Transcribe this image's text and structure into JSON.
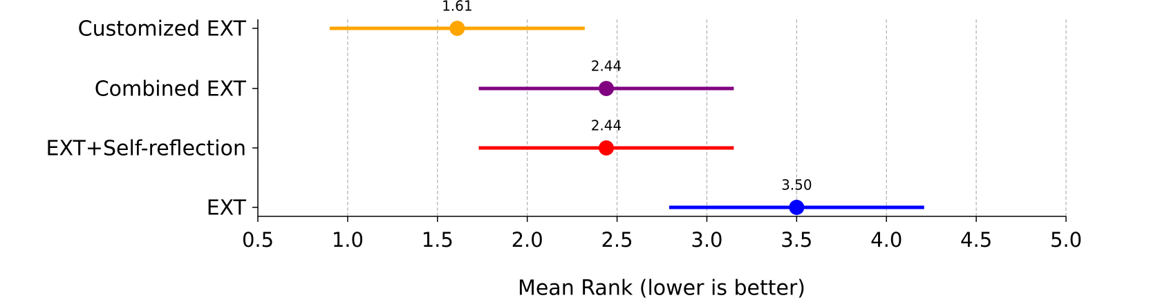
{
  "chart_data": {
    "type": "errorbar",
    "xlabel": "Mean Rank (lower is better)",
    "categories": [
      "Customized EXT",
      "Combined EXT",
      "EXT+Self-reflection",
      "EXT"
    ],
    "values": [
      1.61,
      2.44,
      2.44,
      3.5
    ],
    "value_labels": [
      "1.61",
      "2.44",
      "2.44",
      "3.50"
    ],
    "errors": [
      0.71,
      0.71,
      0.71,
      0.71
    ],
    "colors": [
      "#ffa500",
      "#800080",
      "#ff0000",
      "#0000ff"
    ],
    "xlim": [
      0.5,
      5.0
    ],
    "xticks": [
      0.5,
      {
        "value": 1.0,
        "label": "1.0"
      },
      1.5,
      {
        "value": 2.0,
        "label": "2.0"
      },
      2.5,
      {
        "value": 3.0,
        "label": "3.0"
      },
      3.5,
      {
        "value": 4.0,
        "label": "4.0"
      },
      4.5,
      {
        "value": 5.0,
        "label": "5.0"
      }
    ],
    "grid": true
  }
}
